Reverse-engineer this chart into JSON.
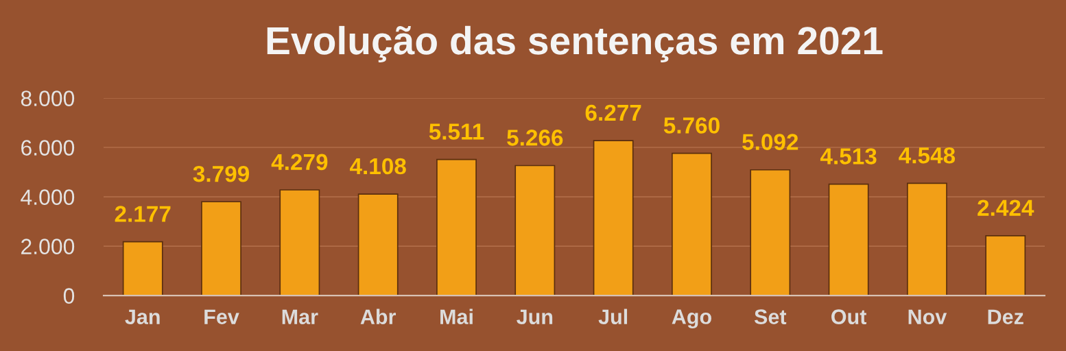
{
  "chart_data": {
    "type": "bar",
    "title": "Evolução das sentenças em 2021",
    "categories": [
      "Jan",
      "Fev",
      "Mar",
      "Abr",
      "Mai",
      "Jun",
      "Jul",
      "Ago",
      "Set",
      "Out",
      "Nov",
      "Dez"
    ],
    "values": [
      2177,
      3799,
      4279,
      4108,
      5511,
      5266,
      6277,
      5760,
      5092,
      4513,
      4548,
      2424
    ],
    "value_labels": [
      "2.177",
      "3.799",
      "4.279",
      "4.108",
      "5.511",
      "5.266",
      "6.277",
      "5.760",
      "5.092",
      "4.513",
      "4.548",
      "2.424"
    ],
    "color": "#f29f17",
    "ylim": [
      0,
      8000
    ],
    "yticks": [
      0,
      {
        "value": 2000,
        "label": "2.000"
      },
      {
        "value": 4000,
        "label": "4.000"
      },
      {
        "value": 6000,
        "label": "6.000"
      },
      {
        "value": 8000,
        "label": "8.000"
      }
    ],
    "grid": "y"
  }
}
